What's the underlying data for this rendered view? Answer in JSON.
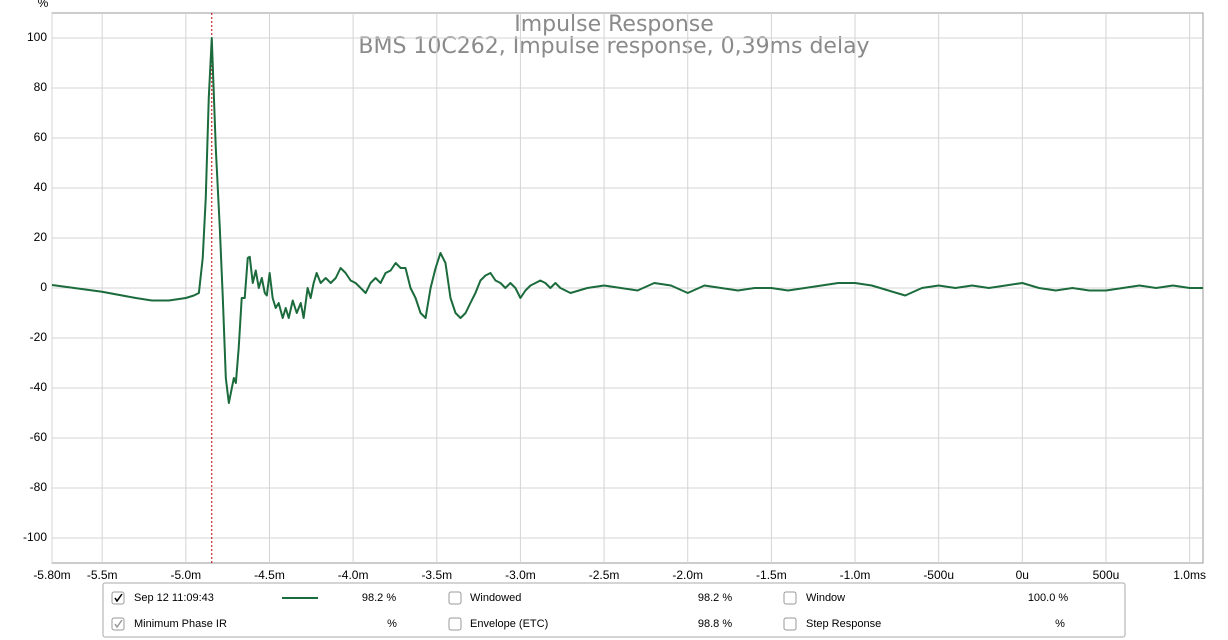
{
  "chart_data": {
    "type": "line",
    "title": "Impulse Response",
    "subtitle": "BMS 10C262, Impulse response, 0,39ms delay",
    "ylabel": "%",
    "x": [
      -5.8,
      -5.501,
      -5.299,
      -5.203,
      -5.101,
      -5.0,
      -4.952,
      -4.922,
      -4.899,
      -4.881,
      -4.863,
      -4.845,
      -4.821,
      -4.797,
      -4.779,
      -4.761,
      -4.743,
      -4.725,
      -4.713,
      -4.701,
      -4.684,
      -4.666,
      -4.648,
      -4.63,
      -4.618,
      -4.6,
      -4.582,
      -4.564,
      -4.546,
      -4.528,
      -4.516,
      -4.499,
      -4.481,
      -4.463,
      -4.445,
      -4.421,
      -4.403,
      -4.385,
      -4.361,
      -4.337,
      -4.313,
      -4.296,
      -4.272,
      -4.254,
      -4.236,
      -4.218,
      -4.194,
      -4.164,
      -4.134,
      -4.104,
      -4.075,
      -4.045,
      -4.015,
      -3.985,
      -3.955,
      -3.925,
      -3.896,
      -3.866,
      -3.836,
      -3.806,
      -3.776,
      -3.746,
      -3.716,
      -3.687,
      -3.657,
      -3.627,
      -3.597,
      -3.567,
      -3.537,
      -3.507,
      -3.478,
      -3.448,
      -3.418,
      -3.388,
      -3.358,
      -3.328,
      -3.299,
      -3.269,
      -3.239,
      -3.209,
      -3.179,
      -3.149,
      -3.119,
      -3.09,
      -3.06,
      -3.03,
      -3.0,
      -2.97,
      -2.94,
      -2.91,
      -2.881,
      -2.851,
      -2.821,
      -2.791,
      -2.761,
      -2.701,
      -2.6,
      -2.5,
      -2.4,
      -2.3,
      -2.2,
      -2.1,
      -2.0,
      -1.9,
      -1.8,
      -1.7,
      -1.6,
      -1.5,
      -1.4,
      -1.3,
      -1.2,
      -1.1,
      -1.0,
      -0.9,
      -0.8,
      -0.7,
      -0.6,
      -0.5,
      -0.4,
      -0.3,
      -0.2,
      -0.1,
      0.0,
      0.1,
      0.2,
      0.3,
      0.4,
      0.5,
      0.6,
      0.7,
      0.8,
      0.9,
      1.0,
      1.08
    ],
    "series": [
      {
        "name": "Sep 12 11:09:43",
        "color": "#1b6b3c",
        "values": [
          1.2,
          -1.5,
          -4,
          -5,
          -5,
          -4,
          -3,
          -2,
          12,
          36,
          76,
          100,
          56,
          24,
          -4,
          -36,
          -46,
          -40,
          -36,
          -38,
          -24,
          -4,
          -4,
          12,
          12.5,
          2,
          7,
          0,
          4,
          -2,
          -3,
          6,
          -4,
          -8,
          -6,
          -12,
          -8,
          -12,
          -5,
          -10,
          -6,
          -12,
          0,
          -4,
          2,
          6,
          2,
          4,
          2,
          4,
          8,
          6,
          3,
          2,
          0,
          -2,
          2,
          4,
          2,
          6,
          7,
          10,
          8,
          8,
          0,
          -4,
          -10,
          -12,
          0,
          8,
          14,
          10,
          -4,
          -10,
          -12,
          -10,
          -6,
          -2,
          3,
          5,
          6,
          3,
          2,
          0,
          2,
          0,
          -4,
          -1,
          1,
          2,
          3,
          2,
          0,
          2,
          0,
          -2,
          0,
          1,
          0,
          -1,
          2,
          1,
          -2,
          1,
          0,
          -1,
          0,
          0,
          -1,
          0,
          1,
          2,
          2,
          1,
          -1,
          -3,
          0,
          1,
          0,
          1,
          0,
          1,
          2,
          0,
          -1,
          0,
          -1,
          -1,
          0,
          1,
          0,
          1,
          0,
          0
        ]
      }
    ],
    "cursor_x": -4.845,
    "xlim": [
      -5.8,
      1.08
    ],
    "ylim": [
      -110,
      110
    ],
    "xticks": [
      {
        "value": -5.8,
        "label": "-5.80m"
      },
      {
        "value": -5.5,
        "label": "-5.5m"
      },
      {
        "value": -5.0,
        "label": "-5.0m"
      },
      {
        "value": -4.5,
        "label": "-4.5m"
      },
      {
        "value": -4.0,
        "label": "-4.0m"
      },
      {
        "value": -3.5,
        "label": "-3.5m"
      },
      {
        "value": -3.0,
        "label": "-3.0m"
      },
      {
        "value": -2.5,
        "label": "-2.5m"
      },
      {
        "value": -2.0,
        "label": "-2.0m"
      },
      {
        "value": -1.5,
        "label": "-1.5m"
      },
      {
        "value": -1.0,
        "label": "-1.0m"
      },
      {
        "value": -0.5,
        "label": "-500u"
      },
      {
        "value": 0,
        "label": "0u"
      },
      {
        "value": 0.5,
        "label": "500u"
      },
      {
        "value": 1.0,
        "label": "1.0ms"
      }
    ],
    "yticks": [
      100,
      80,
      60,
      40,
      20,
      0,
      -20,
      -40,
      -60,
      -80,
      -100
    ],
    "grid": true
  },
  "panel": {
    "rows": [
      [
        {
          "checked": true,
          "value": "98.2 %"
        },
        {
          "checked": false,
          "label": "Windowed",
          "value": "98.2 %"
        },
        {
          "checked": false,
          "label": "Window",
          "value": "100.0 %"
        }
      ],
      [
        {
          "checked": true,
          "label": "Minimum Phase IR",
          "value": "%"
        },
        {
          "checked": false,
          "label": "Envelope (ETC)",
          "value": "98.8 %"
        },
        {
          "checked": false,
          "label": "Step Response",
          "value": "%"
        }
      ]
    ]
  }
}
